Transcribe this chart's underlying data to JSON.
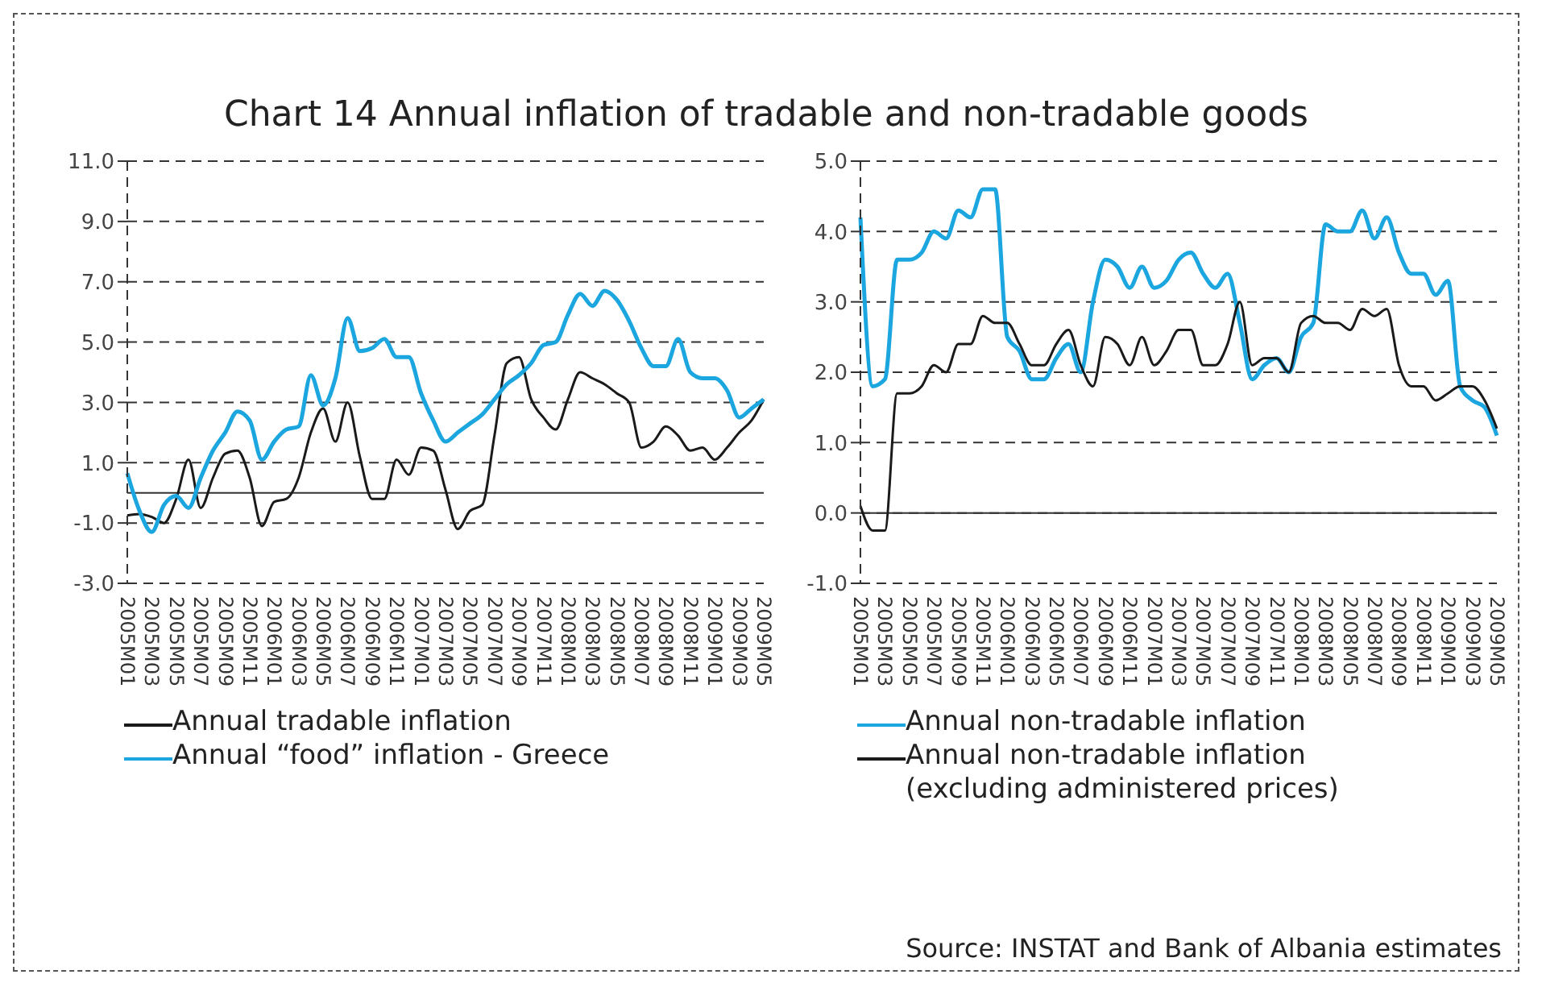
{
  "chart_data": [
    {
      "type": "line",
      "title": "Chart 14 Annual inflation of tradable and non-tradable goods",
      "categories": [
        "2005M01",
        null,
        "2005M03",
        null,
        "2005M05",
        null,
        "2005M07",
        null,
        "2005M09",
        null,
        "2005M11",
        null,
        "2006M01",
        null,
        "2006M03",
        null,
        "2006M05",
        null,
        "2006M07",
        null,
        "2006M09",
        null,
        "2006M11",
        null,
        "2007M01",
        null,
        "2007M03",
        null,
        "2007M05",
        null,
        "2007M07",
        null,
        "2007M09",
        null,
        "2007M11",
        null,
        "2008M01",
        null,
        "2008M03",
        null,
        "2008M05",
        null,
        "2008M07",
        null,
        "2008M09",
        null,
        "2008M11",
        null,
        "2009M01",
        null,
        "2009M03",
        null,
        "2009M05"
      ],
      "series": [
        {
          "name": "Annual tradable inflation",
          "color": "#1a1a1a",
          "values": [
            -0.75,
            -0.7,
            -0.8,
            -1.0,
            -0.2,
            1.1,
            -0.5,
            0.5,
            1.3,
            1.4,
            0.5,
            -1.1,
            -0.3,
            -0.2,
            0.5,
            2.0,
            2.8,
            1.7,
            3.0,
            1.2,
            -0.2,
            -0.2,
            1.1,
            0.6,
            1.5,
            1.4,
            0.1,
            -1.2,
            -0.6,
            -0.4,
            1.9,
            4.3,
            4.5,
            3.1,
            2.5,
            2.1,
            3.1,
            4.0,
            3.8,
            3.6,
            3.3,
            3.0,
            1.5,
            1.7,
            2.2,
            1.9,
            1.4,
            1.5,
            1.1,
            1.5,
            2.0,
            2.4,
            3.1
          ]
        },
        {
          "name": "Annual “food” inflation - Greece",
          "color": "#1ba6e0",
          "values": [
            0.65,
            -0.6,
            -1.3,
            -0.4,
            -0.1,
            -0.5,
            0.5,
            1.4,
            2.0,
            2.7,
            2.4,
            1.1,
            1.7,
            2.1,
            2.2,
            3.9,
            2.9,
            3.8,
            5.8,
            4.7,
            4.8,
            5.1,
            4.5,
            4.5,
            3.3,
            2.4,
            1.7,
            2.0,
            2.3,
            2.6,
            3.1,
            3.6,
            3.9,
            4.3,
            4.9,
            5.0,
            5.9,
            6.6,
            6.2,
            6.7,
            6.4,
            5.7,
            4.8,
            4.2,
            4.2,
            5.1,
            4.0,
            3.8,
            3.8,
            3.4,
            2.5,
            2.8,
            3.1
          ]
        }
      ],
      "ylim": [
        -3,
        11
      ],
      "yticks": [
        {
          "value": -3,
          "label": "-3.0"
        },
        {
          "value": -1,
          "label": "-1.0"
        },
        {
          "value": 1,
          "label": "1.0"
        },
        {
          "value": 3,
          "label": "3.0"
        },
        {
          "value": 5,
          "label": "5.0"
        },
        {
          "value": 7,
          "label": "7.0"
        },
        {
          "value": 9,
          "label": "9.0"
        },
        {
          "value": 11,
          "label": "11.0"
        }
      ],
      "ref_lines": [
        {
          "axis": "y",
          "value": 0,
          "color": "#333333"
        }
      ],
      "grid": "y",
      "legend": "bottom",
      "marker": "none",
      "line_style": "solid"
    },
    {
      "type": "line",
      "categories": [
        "2005M01",
        null,
        "2005M03",
        null,
        "2005M05",
        null,
        "2005M07",
        null,
        "2005M09",
        null,
        "2005M11",
        null,
        "2006M01",
        null,
        "2006M03",
        null,
        "2006M05",
        null,
        "2006M07",
        null,
        "2006M09",
        null,
        "2006M11",
        null,
        "2007M01",
        null,
        "2007M03",
        null,
        "2007M05",
        null,
        "2007M07",
        null,
        "2007M09",
        null,
        "2007M11",
        null,
        "2008M01",
        null,
        "2008M03",
        null,
        "2008M05",
        null,
        "2008M07",
        null,
        "2008M09",
        null,
        "2008M11",
        null,
        "2009M01",
        null,
        "2009M03",
        null,
        "2009M05"
      ],
      "series": [
        {
          "name": "Annual non-tradable inflation",
          "color": "#1ba6e0",
          "values": [
            4.2,
            1.8,
            1.9,
            3.6,
            3.6,
            3.7,
            4.0,
            3.9,
            4.3,
            4.2,
            4.6,
            4.6,
            2.5,
            2.3,
            1.9,
            1.9,
            2.2,
            2.4,
            2.0,
            3.0,
            3.6,
            3.5,
            3.2,
            3.5,
            3.2,
            3.3,
            3.6,
            3.7,
            3.4,
            3.2,
            3.4,
            2.7,
            1.9,
            2.1,
            2.2,
            2.0,
            2.5,
            2.7,
            4.1,
            4.0,
            4.0,
            4.3,
            3.9,
            4.2,
            3.7,
            3.4,
            3.4,
            3.1,
            3.3,
            1.8,
            1.6,
            1.5,
            1.1
          ]
        },
        {
          "name": "Annual non-tradable inflation (excluding administered prices)",
          "color": "#1a1a1a",
          "values": [
            0.1,
            -0.25,
            -0.25,
            1.7,
            1.7,
            1.8,
            2.1,
            2.0,
            2.4,
            2.4,
            2.8,
            2.7,
            2.7,
            2.4,
            2.1,
            2.1,
            2.4,
            2.6,
            2.1,
            1.8,
            2.5,
            2.4,
            2.1,
            2.5,
            2.1,
            2.3,
            2.6,
            2.6,
            2.1,
            2.1,
            2.4,
            3.0,
            2.1,
            2.2,
            2.2,
            2.0,
            2.7,
            2.8,
            2.7,
            2.7,
            2.6,
            2.9,
            2.8,
            2.9,
            2.1,
            1.8,
            1.8,
            1.6,
            1.7,
            1.8,
            1.8,
            1.6,
            1.2
          ]
        }
      ],
      "ylim": [
        -1,
        5
      ],
      "yticks": [
        {
          "value": -1,
          "label": "-1.0"
        },
        {
          "value": 0,
          "label": "0.0"
        },
        {
          "value": 1,
          "label": "1.0"
        },
        {
          "value": 2,
          "label": "2.0"
        },
        {
          "value": 3,
          "label": "3.0"
        },
        {
          "value": 4,
          "label": "4.0"
        },
        {
          "value": 5,
          "label": "5.0"
        }
      ],
      "ref_lines": [
        {
          "axis": "y",
          "value": 0,
          "color": "#333333"
        }
      ],
      "grid": "y",
      "legend": "bottom",
      "marker": "none",
      "line_style": "solid",
      "annotations": [
        "Source: INSTAT and Bank of Albania estimates"
      ]
    }
  ]
}
